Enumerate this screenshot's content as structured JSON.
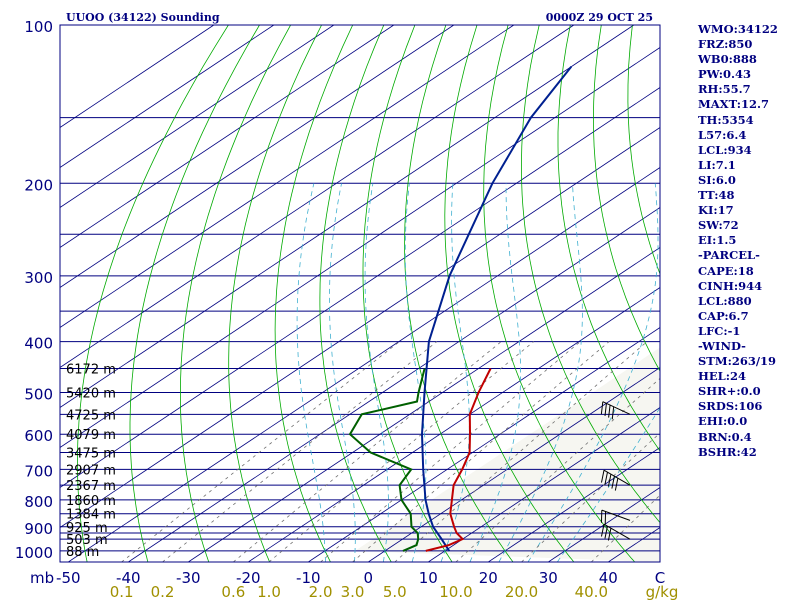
{
  "header": {
    "title": "UUOO (34122) Sounding",
    "time": "0000Z 29 OCT 25"
  },
  "colors": {
    "frame": "#000080",
    "isobar": "#000080",
    "isotherm": "#000080",
    "dry_adiabat": "#00aa00",
    "moist_adiabat": "#40b0d0",
    "mixing_ratio": "#707070",
    "temperature": "#c00000",
    "dewpoint": "#006000",
    "parcel": "#002090",
    "wind": "#000000",
    "tick_text": "#000080",
    "mixing_text": "#a09000",
    "background": "#ffffff",
    "plot_bg": "#f6f6f1"
  },
  "indices": [
    "WMO:34122",
    "FRZ:850",
    "WB0:888",
    "PW:0.43",
    "RH:55.7",
    "MAXT:12.7",
    "TH:5354",
    "L57:6.4",
    "LCL:934",
    "LI:7.1",
    "SI:6.0",
    "TT:48",
    "KI:17",
    "SW:72",
    "EI:1.5",
    "-PARCEL-",
    "CAPE:18",
    "CINH:944",
    "LCL:880",
    "CAP:6.7",
    "LFC:-1",
    "-WIND-",
    "STM:263/19",
    "HEL:24",
    "SHR+:0.0",
    "SRDS:106",
    "EHI:0.0",
    "BRN:0.4",
    "BSHR:42"
  ],
  "chart_data": {
    "type": "skew-t",
    "title": "UUOO (34122) Sounding",
    "pressure_unit_label": "mb",
    "pressure_ticks": [
      "100",
      "200",
      "300",
      "400",
      "500",
      "600",
      "700",
      "800",
      "900",
      "1000"
    ],
    "pressure_tick_values": [
      100,
      200,
      300,
      400,
      500,
      600,
      700,
      800,
      900,
      1000
    ],
    "isobars": [
      100,
      150,
      200,
      250,
      300,
      350,
      400,
      450,
      500,
      550,
      600,
      650,
      700,
      750,
      800,
      850,
      900,
      925,
      950,
      1000
    ],
    "temperature_ticks": [
      "-50",
      "-40",
      "-30",
      "-20",
      "-10",
      "0",
      "10",
      "20",
      "30",
      "40",
      "C"
    ],
    "temperature_tick_values": [
      -50,
      -40,
      -30,
      -20,
      -10,
      0,
      10,
      20,
      30,
      40
    ],
    "mixing_ratio_labels": [
      "0.1",
      "0.2",
      "0.6",
      "1.0",
      "2.0",
      "3.0",
      "5.0",
      "10.0",
      "20.0",
      "40.0",
      "g/kg"
    ],
    "mixing_ratio_values": [
      0.1,
      0.2,
      0.6,
      1.0,
      2.0,
      3.0,
      5.0,
      10.0,
      20.0,
      40.0
    ],
    "height_labels": [
      {
        "label": "6172 m",
        "p": 450
      },
      {
        "label": "5420 m",
        "p": 500
      },
      {
        "label": "4725 m",
        "p": 550
      },
      {
        "label": "4079 m",
        "p": 600
      },
      {
        "label": "3475 m",
        "p": 650
      },
      {
        "label": "2907 m",
        "p": 700
      },
      {
        "label": "2367 m",
        "p": 750
      },
      {
        "label": "1860 m",
        "p": 800
      },
      {
        "label": "1384 m",
        "p": 850
      },
      {
        "label": "925 m",
        "p": 900
      },
      {
        "label": "503 m",
        "p": 950
      },
      {
        "label": "88 m",
        "p": 1000
      }
    ],
    "temperature_profile": [
      {
        "p": 1000,
        "t": 6.8
      },
      {
        "p": 975,
        "t": 9.2
      },
      {
        "p": 950,
        "t": 10.0
      },
      {
        "p": 925,
        "t": 7.5
      },
      {
        "p": 900,
        "t": 5.5
      },
      {
        "p": 850,
        "t": 1.6
      },
      {
        "p": 800,
        "t": -1.6
      },
      {
        "p": 750,
        "t": -5.0
      },
      {
        "p": 700,
        "t": -7.5
      },
      {
        "p": 650,
        "t": -10.5
      },
      {
        "p": 600,
        "t": -15.0
      },
      {
        "p": 550,
        "t": -20.0
      },
      {
        "p": 500,
        "t": -24.0
      },
      {
        "p": 450,
        "t": -28.0
      }
    ],
    "dewpoint_profile": [
      {
        "p": 1000,
        "td": 3.0
      },
      {
        "p": 975,
        "td": 3.8
      },
      {
        "p": 950,
        "td": 2.6
      },
      {
        "p": 925,
        "td": 1.0
      },
      {
        "p": 900,
        "td": -1.6
      },
      {
        "p": 850,
        "td": -5.0
      },
      {
        "p": 800,
        "td": -10.0
      },
      {
        "p": 750,
        "td": -14.0
      },
      {
        "p": 700,
        "td": -16.0
      },
      {
        "p": 650,
        "td": -27.0
      },
      {
        "p": 600,
        "td": -35.0
      },
      {
        "p": 550,
        "td": -38.0
      },
      {
        "p": 520,
        "td": -32.0
      },
      {
        "p": 500,
        "td": -34.0
      },
      {
        "p": 450,
        "td": -39.0
      }
    ],
    "parcel_profile": [
      {
        "p": 1000,
        "t": 10.7
      },
      {
        "p": 950,
        "t": 6.5
      },
      {
        "p": 900,
        "t": 2.0
      },
      {
        "p": 850,
        "t": -2.0
      },
      {
        "p": 800,
        "t": -6.0
      },
      {
        "p": 700,
        "t": -14.0
      },
      {
        "p": 600,
        "t": -23.0
      },
      {
        "p": 500,
        "t": -33.0
      },
      {
        "p": 400,
        "t": -45.0
      },
      {
        "p": 300,
        "t": -58.0
      },
      {
        "p": 200,
        "t": -74.0
      },
      {
        "p": 150,
        "t": -84.0
      },
      {
        "p": 120,
        "t": -90.0
      }
    ],
    "wind_barbs": [
      {
        "p": 950,
        "dir": 300,
        "kt": 30
      },
      {
        "p": 875,
        "dir": 290,
        "kt": 20
      },
      {
        "p": 750,
        "dir": 300,
        "kt": 50
      },
      {
        "p": 550,
        "dir": 295,
        "kt": 40
      }
    ]
  }
}
